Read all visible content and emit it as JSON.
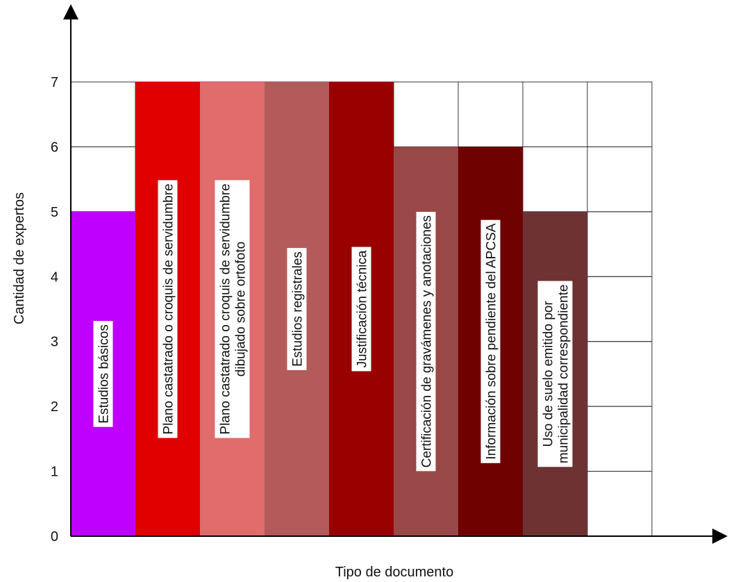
{
  "chart_data": {
    "type": "bar",
    "xlabel": "Tipo de documento",
    "ylabel": "Cantidad de expertos",
    "ylim": [
      0,
      7
    ],
    "yticks": [
      "0",
      "1",
      "2",
      "3",
      "4",
      "5",
      "6",
      "7"
    ],
    "grid": true,
    "categories": [
      [
        "Estudios básicos"
      ],
      [
        "Plano castatrado o croquis de servidumbre"
      ],
      [
        "Plano castatrado o croquis de servidumbre",
        "dibujado sobre ortofoto"
      ],
      [
        "Estudios registrales"
      ],
      [
        "Justificación técnica"
      ],
      [
        "Certificación de gravámenes y anotaciones"
      ],
      [
        "Información sobre pendiente del APCSA"
      ],
      [
        "Uso de suelo emitido por",
        "municipalidad correspondiente"
      ]
    ],
    "values": [
      5,
      7,
      7,
      7,
      7,
      6,
      6,
      5
    ],
    "colors": [
      "#bf00ff",
      "#e00000",
      "#e06c6c",
      "#b55a5a",
      "#990000",
      "#994848",
      "#6f0000",
      "#6e3232"
    ]
  }
}
